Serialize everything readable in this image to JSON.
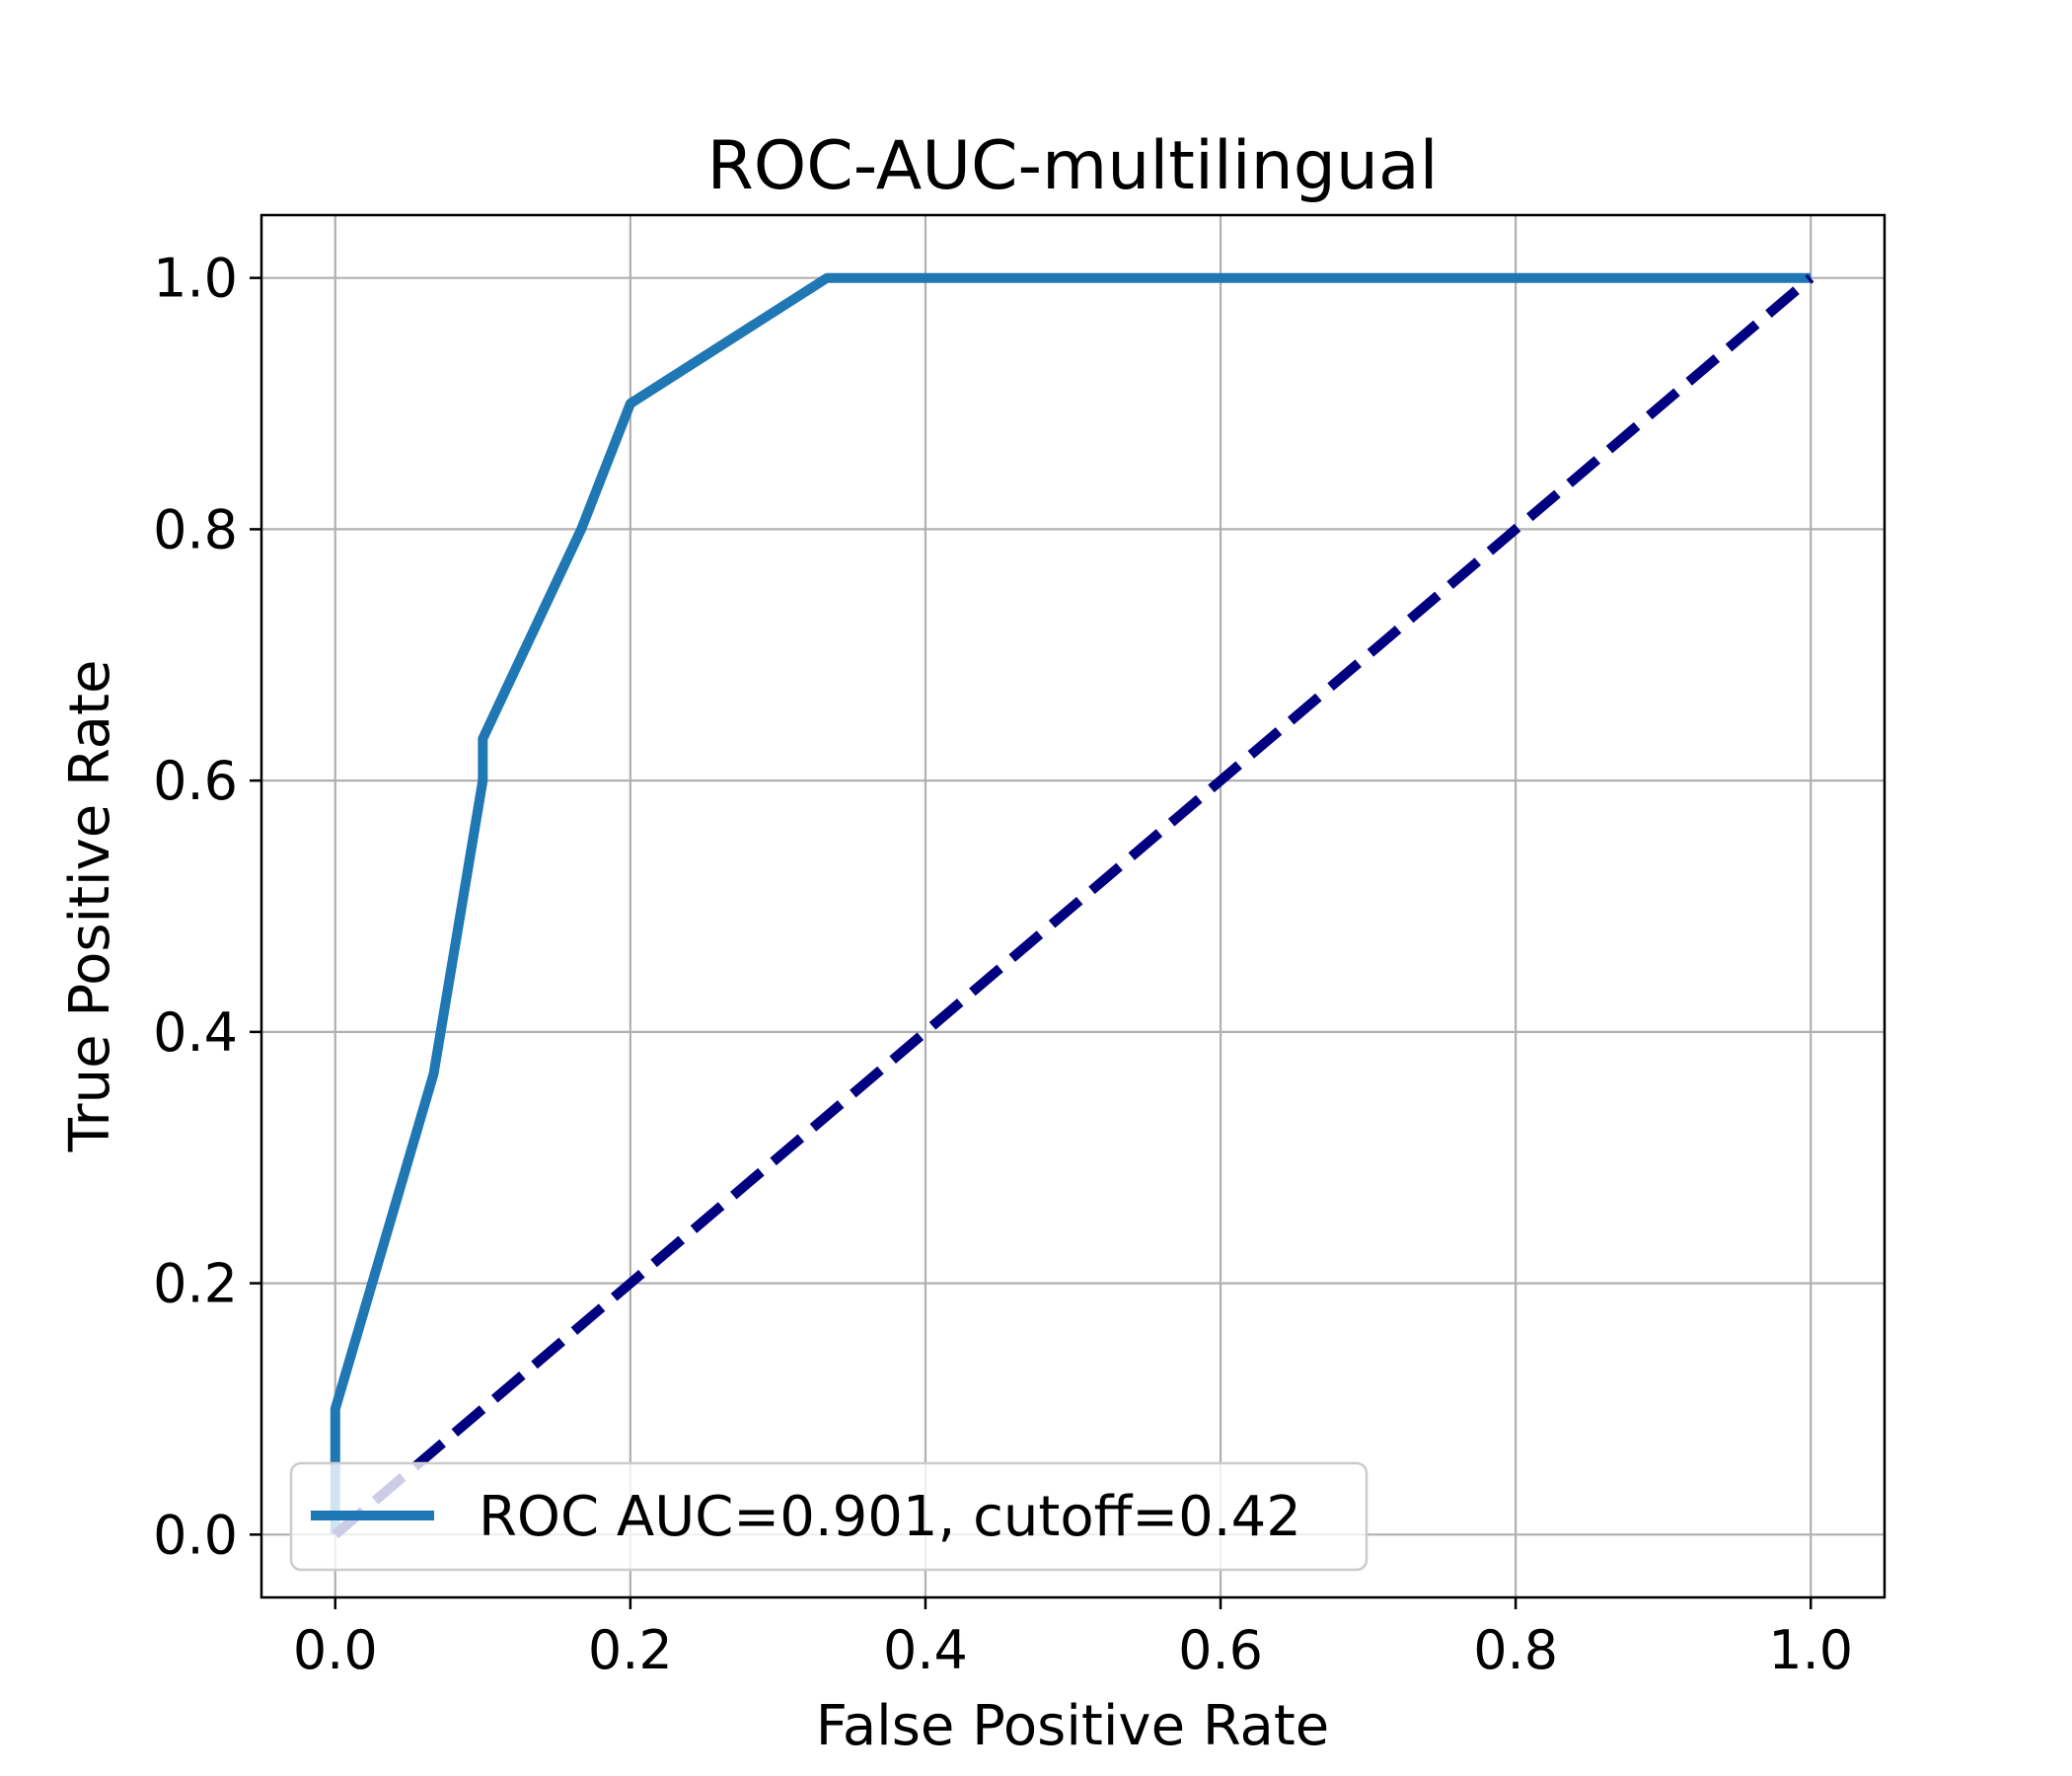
{
  "chart_data": {
    "type": "line",
    "title": "ROC-AUC-multilingual",
    "xlabel": "False Positive Rate",
    "ylabel": "True Positive Rate",
    "xlim": [
      -0.05,
      1.05
    ],
    "ylim": [
      -0.05,
      1.05
    ],
    "x_ticks": [
      0.0,
      0.2,
      0.4,
      0.6,
      0.8,
      1.0
    ],
    "y_ticks": [
      0.0,
      0.2,
      0.4,
      0.6,
      0.8,
      1.0
    ],
    "x_tick_labels": [
      "0.0",
      "0.2",
      "0.4",
      "0.6",
      "0.8",
      "1.0"
    ],
    "y_tick_labels": [
      "0.0",
      "0.2",
      "0.4",
      "0.6",
      "0.8",
      "1.0"
    ],
    "grid": true,
    "legend_position": "lower-left",
    "series": [
      {
        "name": "ROC AUC=0.901, cutoff=0.42",
        "style": "solid",
        "color": "#1f77b4",
        "x": [
          0.0,
          0.0,
          0.0,
          0.0667,
          0.1,
          0.1,
          0.1667,
          0.2,
          0.3333,
          1.0
        ],
        "y": [
          0.0,
          0.0333,
          0.1,
          0.3667,
          0.6,
          0.6333,
          0.8,
          0.9,
          1.0,
          1.0
        ]
      },
      {
        "style": "dashed",
        "color": "#000080",
        "x": [
          0.0,
          1.0
        ],
        "y": [
          0.0,
          1.0
        ]
      }
    ]
  }
}
